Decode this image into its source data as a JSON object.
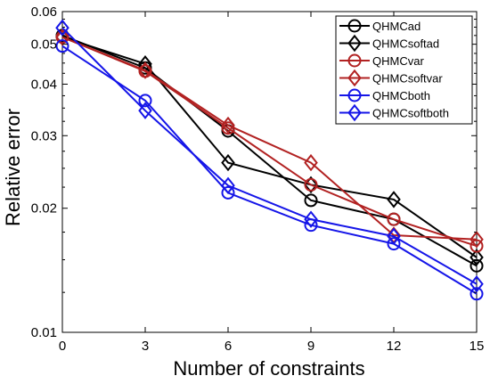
{
  "chart_data": {
    "type": "line",
    "xlabel": "Number of constraints",
    "ylabel": "Relative error",
    "x": [
      0,
      3,
      6,
      9,
      12,
      15
    ],
    "xlim": [
      0,
      15
    ],
    "ylim": [
      0.01,
      0.06
    ],
    "yscale": "log",
    "xticks": [
      "0",
      "3",
      "6",
      "9",
      "12",
      "15"
    ],
    "yticks": [
      {
        "value": 0.06,
        "label": "0.06"
      },
      {
        "value": 0.05,
        "label": "0.05"
      },
      {
        "value": 0.04,
        "label": "0.04"
      },
      {
        "value": 0.03,
        "label": "0.03"
      },
      {
        "value": 0.02,
        "label": "0.02"
      },
      {
        "value": 0.01,
        "label": "0.01"
      }
    ],
    "grid": false,
    "legend_position": "top-right",
    "series": [
      {
        "name": "QHMCad",
        "marker": "circle",
        "color": "#000000",
        "values": [
          0.0525,
          0.0438,
          0.0308,
          0.0209,
          0.0188,
          0.0145
        ]
      },
      {
        "name": "QHMCsoftad",
        "marker": "diamond",
        "color": "#000000",
        "values": [
          0.052,
          0.0448,
          0.0258,
          0.0228,
          0.021,
          0.0152
        ]
      },
      {
        "name": "QHMCvar",
        "marker": "circle",
        "color": "#b22222",
        "values": [
          0.052,
          0.043,
          0.0313,
          0.0228,
          0.0188,
          0.0162
        ]
      },
      {
        "name": "QHMCsoftvar",
        "marker": "diamond",
        "color": "#b22222",
        "values": [
          0.052,
          0.0432,
          0.0318,
          0.0258,
          0.0172,
          0.0168
        ]
      },
      {
        "name": "QHMCboth",
        "marker": "circle",
        "color": "#1515e8",
        "values": [
          0.0495,
          0.0365,
          0.0218,
          0.0182,
          0.0164,
          0.0124
        ]
      },
      {
        "name": "QHMCsoftboth",
        "marker": "diamond",
        "color": "#1515e8",
        "values": [
          0.0548,
          0.0345,
          0.0227,
          0.0188,
          0.0171,
          0.0131
        ]
      }
    ]
  }
}
